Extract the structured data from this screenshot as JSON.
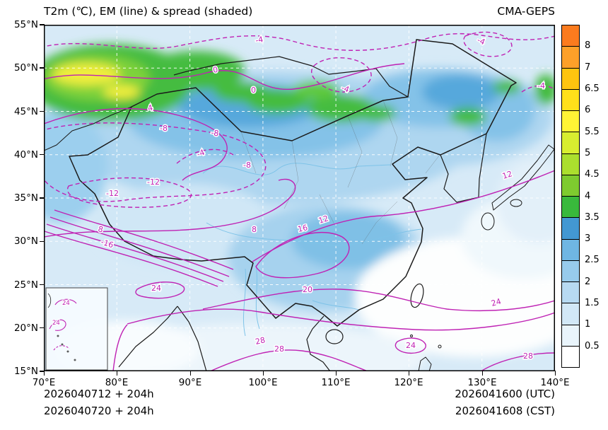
{
  "header": {
    "title": "T2m (℃), EM (line) & spread (shaded)",
    "model": "CMA-GEPS"
  },
  "axes": {
    "lat_ticks": [
      "55°N",
      "50°N",
      "45°N",
      "40°N",
      "35°N",
      "30°N",
      "25°N",
      "20°N",
      "15°N"
    ],
    "lon_ticks": [
      "70°E",
      "80°E",
      "90°E",
      "100°E",
      "110°E",
      "120°E",
      "130°E",
      "140°E"
    ]
  },
  "colorbar": {
    "tick_labels": [
      "8",
      "7",
      "6.5",
      "6",
      "5.5",
      "5",
      "4.5",
      "4",
      "3.5",
      "3",
      "2.5",
      "2",
      "1.5",
      "1",
      "0.5"
    ],
    "colors_top_to_bottom": [
      "#fb7b1e",
      "#fda029",
      "#fec40f",
      "#ffe01a",
      "#fff435",
      "#d8ee30",
      "#abdf2e",
      "#7ecb2f",
      "#39b93c",
      "#4398d2",
      "#6fb6e3",
      "#97cbec",
      "#b7daf2",
      "#d2e8f7",
      "#e9f4fb",
      "#ffffff"
    ]
  },
  "contours": {
    "color": "#bf22b4",
    "labels": [
      {
        "text": "-4"
      },
      {
        "text": "-4"
      },
      {
        "text": "-4"
      },
      {
        "text": "-4"
      },
      {
        "text": "0"
      },
      {
        "text": "0"
      },
      {
        "text": "4"
      },
      {
        "text": "-8"
      },
      {
        "text": "-8"
      },
      {
        "text": "-4"
      },
      {
        "text": "-8"
      },
      {
        "text": "-12"
      },
      {
        "text": "-12"
      },
      {
        "text": "8"
      },
      {
        "text": "8"
      },
      {
        "text": "-16"
      },
      {
        "text": "12"
      },
      {
        "text": "12"
      },
      {
        "text": "16"
      },
      {
        "text": "20"
      },
      {
        "text": "24"
      },
      {
        "text": "24"
      },
      {
        "text": "28"
      },
      {
        "text": "28"
      },
      {
        "text": "28"
      },
      {
        "text": "24"
      },
      {
        "text": "24"
      },
      {
        "text": "24"
      }
    ]
  },
  "footer": {
    "init_utc": "2026040712 + 204h",
    "init_cst": "2026040720 + 204h",
    "valid_utc": "2026041600 (UTC)",
    "valid_cst": "2026041608 (CST)"
  },
  "chart_data": {
    "type": "heatmap",
    "title": "T2m (℃), EM (line) & spread (shaded)",
    "model": "CMA-GEPS",
    "x_axis": {
      "label": "longitude",
      "ticks": [
        "70°E",
        "80°E",
        "90°E",
        "100°E",
        "110°E",
        "120°E",
        "130°E",
        "140°E"
      ],
      "range": [
        70,
        140
      ]
    },
    "y_axis": {
      "label": "latitude",
      "ticks": [
        "55°N",
        "50°N",
        "45°N",
        "40°N",
        "35°N",
        "30°N",
        "25°N",
        "20°N",
        "15°N"
      ],
      "range": [
        15,
        55
      ]
    },
    "shading": {
      "variable": "ensemble spread of 2 m temperature (℃)",
      "level_boundaries": [
        0.5,
        1,
        1.5,
        2,
        2.5,
        3,
        3.5,
        4,
        4.5,
        5,
        5.5,
        6,
        6.5,
        7,
        8
      ],
      "colors_low_to_high": [
        "#ffffff",
        "#e9f4fb",
        "#d2e8f7",
        "#b7daf2",
        "#97cbec",
        "#6fb6e3",
        "#4398d2",
        "#39b93c",
        "#7ecb2f",
        "#abdf2e",
        "#d8ee30",
        "#fff435",
        "#ffe01a",
        "#fec40f",
        "#fda029",
        "#fb7b1e"
      ],
      "pattern": "low spread (white/pale blue) over oceans and SE Asia; 2-3.5 ℃ (blue) over northern and central China; 4-6 ℃ (green/yellow) maxima over Central Asia / NW of ~45-52°N and scattered over NE Asia"
    },
    "contour_overlay": {
      "variable": "ensemble mean 2 m temperature (℃)",
      "interval": 4,
      "labeled_levels": [
        -16,
        -12,
        -8,
        -4,
        0,
        4,
        8,
        12,
        16,
        20,
        24,
        28
      ],
      "style": "magenta lines, negative dashed; -4/0 across ~48°N, -8/-12 over Tibetan Plateau, values increasing southward to 28 near 15-18°N",
      "color": "#bf22b4"
    },
    "legend_position": "right vertical colorbar",
    "grid": "dashed 5° x 10° graticule",
    "inset": "South China Sea inset, lower left",
    "init": [
      "2026040712 + 204h",
      "2026040720 + 204h"
    ],
    "valid": [
      "2026041600 (UTC)",
      "2026041608 (CST)"
    ]
  }
}
